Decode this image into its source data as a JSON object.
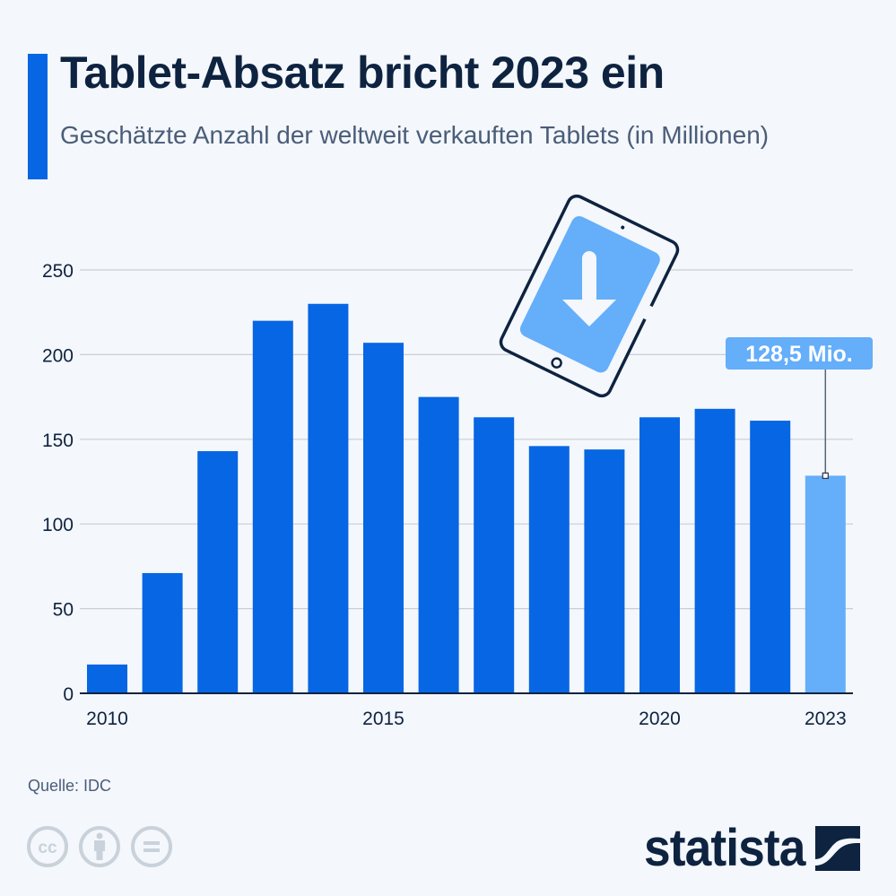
{
  "header": {
    "title": "Tablet-Absatz bricht 2023 ein",
    "subtitle": "Geschätzte Anzahl der weltweit verkauften Tablets (in Millionen)"
  },
  "footer": {
    "source": "Quelle: IDC",
    "license_icons": [
      "cc-icon",
      "attribution-icon",
      "no-derivatives-icon"
    ],
    "logo_text": "statista"
  },
  "colors": {
    "bar": "#0766e4",
    "bar_highlight": "#64aefa",
    "text_dark": "#0e2340",
    "text_muted": "#4a5d79",
    "grid": "#c9ced6",
    "background": "#f4f7fb"
  },
  "illustration": {
    "icon": "tablet-with-down-arrow-icon"
  },
  "chart_data": {
    "type": "bar",
    "title": "Tablet-Absatz bricht 2023 ein",
    "subtitle": "Geschätzte Anzahl der weltweit verkauften Tablets (in Millionen)",
    "xlabel": "",
    "ylabel": "",
    "categories": [
      "2010",
      "2011",
      "2012",
      "2013",
      "2014",
      "2015",
      "2016",
      "2017",
      "2018",
      "2019",
      "2020",
      "2021",
      "2022",
      "2023"
    ],
    "values": [
      17,
      71,
      143,
      220,
      230,
      207,
      175,
      163,
      146,
      144,
      163,
      168,
      161,
      128.5
    ],
    "highlight_index": 13,
    "ylim": [
      0,
      250
    ],
    "yticks": [
      0,
      50,
      100,
      150,
      200,
      250
    ],
    "ytick_labels": [
      "0",
      "50",
      "100",
      "150",
      "200",
      "250"
    ],
    "xtick_labels": [
      {
        "index": 0,
        "label": "2010"
      },
      {
        "index": 5,
        "label": "2015"
      },
      {
        "index": 10,
        "label": "2020"
      },
      {
        "index": 13,
        "label": "2023"
      }
    ],
    "grid": true,
    "legend": "none",
    "annotation": {
      "index": 13,
      "label": "128,5 Mio."
    }
  }
}
